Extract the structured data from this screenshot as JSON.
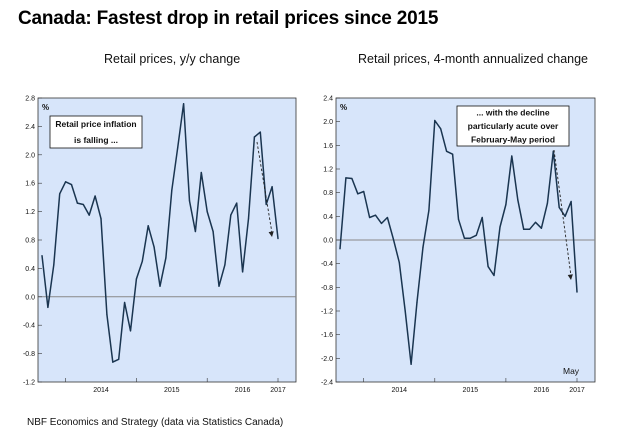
{
  "title": "Canada: Fastest drop in retail prices since 2015",
  "footer": "NBF Economics and Strategy (data via Statistics Canada)",
  "colors": {
    "panel_bg": "#d7e5fa",
    "line": "#1a3550",
    "zero_line": "#888888",
    "arrow": "#222222"
  },
  "chart_data": [
    {
      "type": "line",
      "title": "Retail prices, y/y change",
      "ylabel": "%",
      "ylim": [
        -1.2,
        2.8
      ],
      "yticks": [
        "-1.2",
        "-0.8",
        "-0.4",
        "0.0",
        "0.4",
        "0.8",
        "1.2",
        "1.6",
        "2.0",
        "2.4",
        "2.8"
      ],
      "xticks": [
        "2014",
        "2015",
        "2016",
        "2017"
      ],
      "grid": false,
      "annotation": [
        "Retail price inflation",
        "is falling ..."
      ],
      "x_start": "2013-09",
      "series": [
        {
          "values": [
            0.58,
            -0.15,
            0.45,
            1.45,
            1.62,
            1.58,
            1.32,
            1.3,
            1.15,
            1.42,
            1.1,
            -0.25,
            -0.92,
            -0.88,
            -0.08,
            -0.48,
            0.25,
            0.5,
            1.0,
            0.7,
            0.15,
            0.55,
            1.5,
            2.1,
            2.72,
            1.35,
            0.92,
            1.75,
            1.2,
            0.92,
            0.15,
            0.45,
            1.15,
            1.32,
            0.35,
            1.1,
            2.25,
            2.32,
            1.3,
            1.55,
            0.82
          ]
        }
      ]
    },
    {
      "type": "line",
      "title": "Retail prices, 4-month annualized change",
      "ylabel": "%",
      "ylim": [
        -2.4,
        2.4
      ],
      "yticks": [
        "-2.4",
        "-2.0",
        "-1.6",
        "-1.2",
        "-0.8",
        "-0.4",
        "0.0",
        "0.4",
        "0.8",
        "1.2",
        "1.6",
        "2.0",
        "2.4"
      ],
      "xticks": [
        "2014",
        "2015",
        "2016",
        "2017"
      ],
      "grid": false,
      "annotation": [
        "... with the decline",
        "particularly acute over",
        "February-May period"
      ],
      "end_label": "May",
      "x_start": "2013-09",
      "series": [
        {
          "values": [
            -0.15,
            1.05,
            1.04,
            0.78,
            0.82,
            0.38,
            0.42,
            0.28,
            0.38,
            0.02,
            -0.38,
            -1.2,
            -2.1,
            -1.05,
            -0.12,
            0.5,
            2.02,
            1.88,
            1.5,
            1.45,
            0.35,
            0.03,
            0.03,
            0.08,
            0.38,
            -0.45,
            -0.6,
            0.22,
            0.6,
            1.42,
            0.68,
            0.18,
            0.18,
            0.3,
            0.2,
            0.62,
            1.5,
            0.55,
            0.4,
            0.65,
            -0.88
          ]
        }
      ]
    }
  ]
}
